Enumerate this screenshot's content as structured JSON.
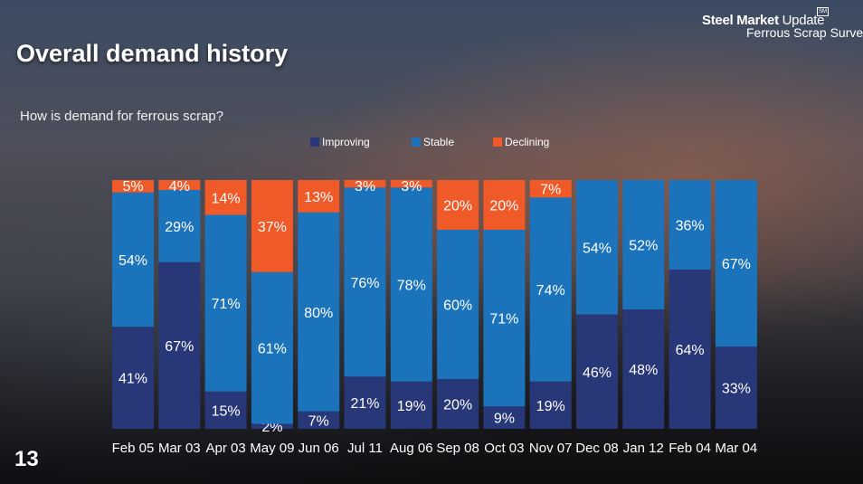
{
  "page": {
    "title": "Overall demand history",
    "subtitle": "How is demand for ferrous scrap?",
    "page_number": "13",
    "logo": {
      "brand_bold": "Steel Market",
      "brand_light": " Update",
      "product": "Ferrous Scrap Survey",
      "badge": "SM"
    }
  },
  "colors": {
    "improving": "#283777",
    "stable": "#1b74bb",
    "declining": "#ef5a28"
  },
  "chart_data": {
    "type": "bar",
    "stacked": true,
    "percent": true,
    "title": "How is demand for ferrous scrap?",
    "xlabel": "",
    "ylabel": "",
    "ylim": [
      0,
      100
    ],
    "legend_position": "top-center",
    "categories": [
      "Feb 05",
      "Mar 03",
      "Apr 03",
      "May 09",
      "Jun 06",
      "Jul 11",
      "Aug 06",
      "Sep 08",
      "Oct 03",
      "Nov 07",
      "Dec 08",
      "Jan 12",
      "Feb 04",
      "Mar 04"
    ],
    "series": [
      {
        "name": "Improving",
        "color": "#283777",
        "values": [
          41,
          67,
          15,
          2,
          7,
          21,
          19,
          20,
          9,
          19,
          46,
          48,
          64,
          33
        ]
      },
      {
        "name": "Stable",
        "color": "#1b74bb",
        "values": [
          54,
          29,
          71,
          61,
          80,
          76,
          78,
          60,
          71,
          74,
          54,
          52,
          36,
          67
        ]
      },
      {
        "name": "Declining",
        "color": "#ef5a28",
        "values": [
          5,
          4,
          14,
          37,
          13,
          3,
          3,
          20,
          20,
          7,
          0,
          0,
          0,
          0
        ]
      }
    ]
  }
}
